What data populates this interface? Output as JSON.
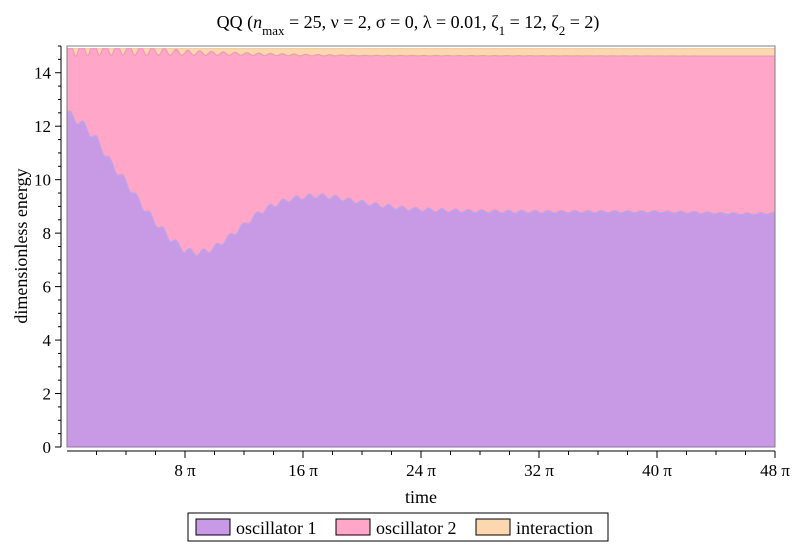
{
  "chart_data": {
    "type": "area",
    "stacked": true,
    "title": {
      "prefix": "QQ  (",
      "n": "n",
      "n_sub": "max",
      "after_n": " = 25, ν = 2, σ = 0, λ = 0.01, ζ",
      "z1_sub": "1",
      "after_z1": " = 12, ζ",
      "z2_sub": "2",
      "suffix": " = 2)"
    },
    "xlabel": "time",
    "ylabel": "dimensionless energy",
    "xlim": [
      0,
      48
    ],
    "ylim": [
      0,
      15
    ],
    "x_unit": "π",
    "x_ticks": [
      {
        "value": 8,
        "label": "8 π"
      },
      {
        "value": 16,
        "label": "16 π"
      },
      {
        "value": 24,
        "label": "24 π"
      },
      {
        "value": 32,
        "label": "32 π"
      },
      {
        "value": 40,
        "label": "40 π"
      },
      {
        "value": 48,
        "label": "48 π"
      }
    ],
    "y_ticks": [
      0,
      2,
      4,
      6,
      8,
      10,
      12,
      14
    ],
    "grid": false,
    "legend_position": "bottom",
    "total_energy": 14.9,
    "series": [
      {
        "name": "oscillator 1",
        "color": "#c89ae6",
        "edge_color": "#b9a7f0",
        "x": [
          0,
          1,
          2,
          3,
          4,
          5,
          6,
          7,
          8,
          9,
          10,
          11,
          12,
          13,
          14,
          15,
          16,
          17,
          18,
          19,
          20,
          21,
          22,
          23,
          24,
          26,
          28,
          30,
          32,
          34,
          36,
          38,
          40,
          42,
          44,
          46,
          48
        ],
        "values": [
          12.5,
          12.1,
          11.5,
          10.6,
          9.9,
          9.1,
          8.4,
          7.8,
          7.35,
          7.25,
          7.45,
          7.85,
          8.3,
          8.75,
          9.05,
          9.25,
          9.35,
          9.4,
          9.35,
          9.25,
          9.15,
          9.05,
          8.98,
          8.92,
          8.88,
          8.84,
          8.82,
          8.8,
          8.8,
          8.8,
          8.8,
          8.8,
          8.8,
          8.78,
          8.75,
          8.72,
          8.75
        ],
        "ripple_amplitude": 0.15,
        "ripple_period": 0.9
      },
      {
        "name": "oscillator 2",
        "color": "#ffa6c9",
        "edge_color": "#f495c0",
        "top_x": [
          0,
          2,
          4,
          6,
          8,
          10,
          12,
          14,
          16,
          18,
          20,
          48
        ],
        "top_values": [
          14.9,
          14.9,
          14.85,
          14.8,
          14.75,
          14.72,
          14.7,
          14.68,
          14.66,
          14.65,
          14.64,
          14.62
        ],
        "ripple_amplitude": [
          0.3,
          0.25,
          0.2,
          0.15,
          0.1,
          0.07,
          0.05,
          0.04,
          0.03,
          0.02,
          0.01,
          0.0
        ],
        "ripple_period": 0.8
      },
      {
        "name": "interaction",
        "color": "#fbd8b0",
        "edge_color": "#f0c79a"
      }
    ]
  }
}
